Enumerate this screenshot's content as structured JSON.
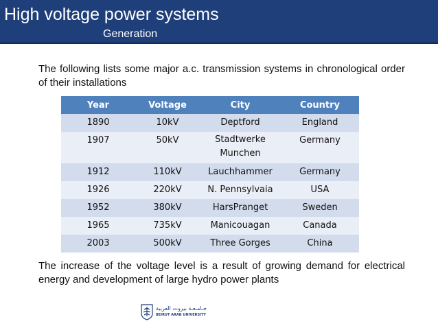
{
  "header": {
    "title": "High voltage power systems",
    "subtitle": "Generation"
  },
  "intro": "The following lists some major a.c. transmission systems in chronological order of their installations",
  "table": {
    "columns": [
      "Year",
      "Voltage",
      "City",
      "Country"
    ],
    "rows": [
      [
        "1890",
        "10kV",
        "Deptford",
        "England"
      ],
      [
        "1907",
        "50kV",
        "Stadtwerke Munchen",
        "Germany"
      ],
      [
        "1912",
        "110kV",
        "Lauchhammer",
        "Germany"
      ],
      [
        "1926",
        "220kV",
        "N. Pennsylvaia",
        "USA"
      ],
      [
        "1952",
        "380kV",
        "HarsPranget",
        "Sweden"
      ],
      [
        "1965",
        "735kV",
        "Manicouagan",
        "Canada"
      ],
      [
        "2003",
        "500kV",
        "Three Gorges",
        "China"
      ]
    ]
  },
  "conclusion": "The increase of the voltage level is a result of growing demand for electrical energy and development of large hydro power plants",
  "logo": {
    "arabic": "جـامـعـة بيروت العربية",
    "english": "BEIRUT ARAB UNIVERSITY",
    "icon": "university-crest-icon"
  },
  "colors": {
    "header": "#1f3f7a",
    "table_header": "#4f81bd",
    "row_odd": "#d3dcec",
    "row_even": "#eaeef6"
  }
}
